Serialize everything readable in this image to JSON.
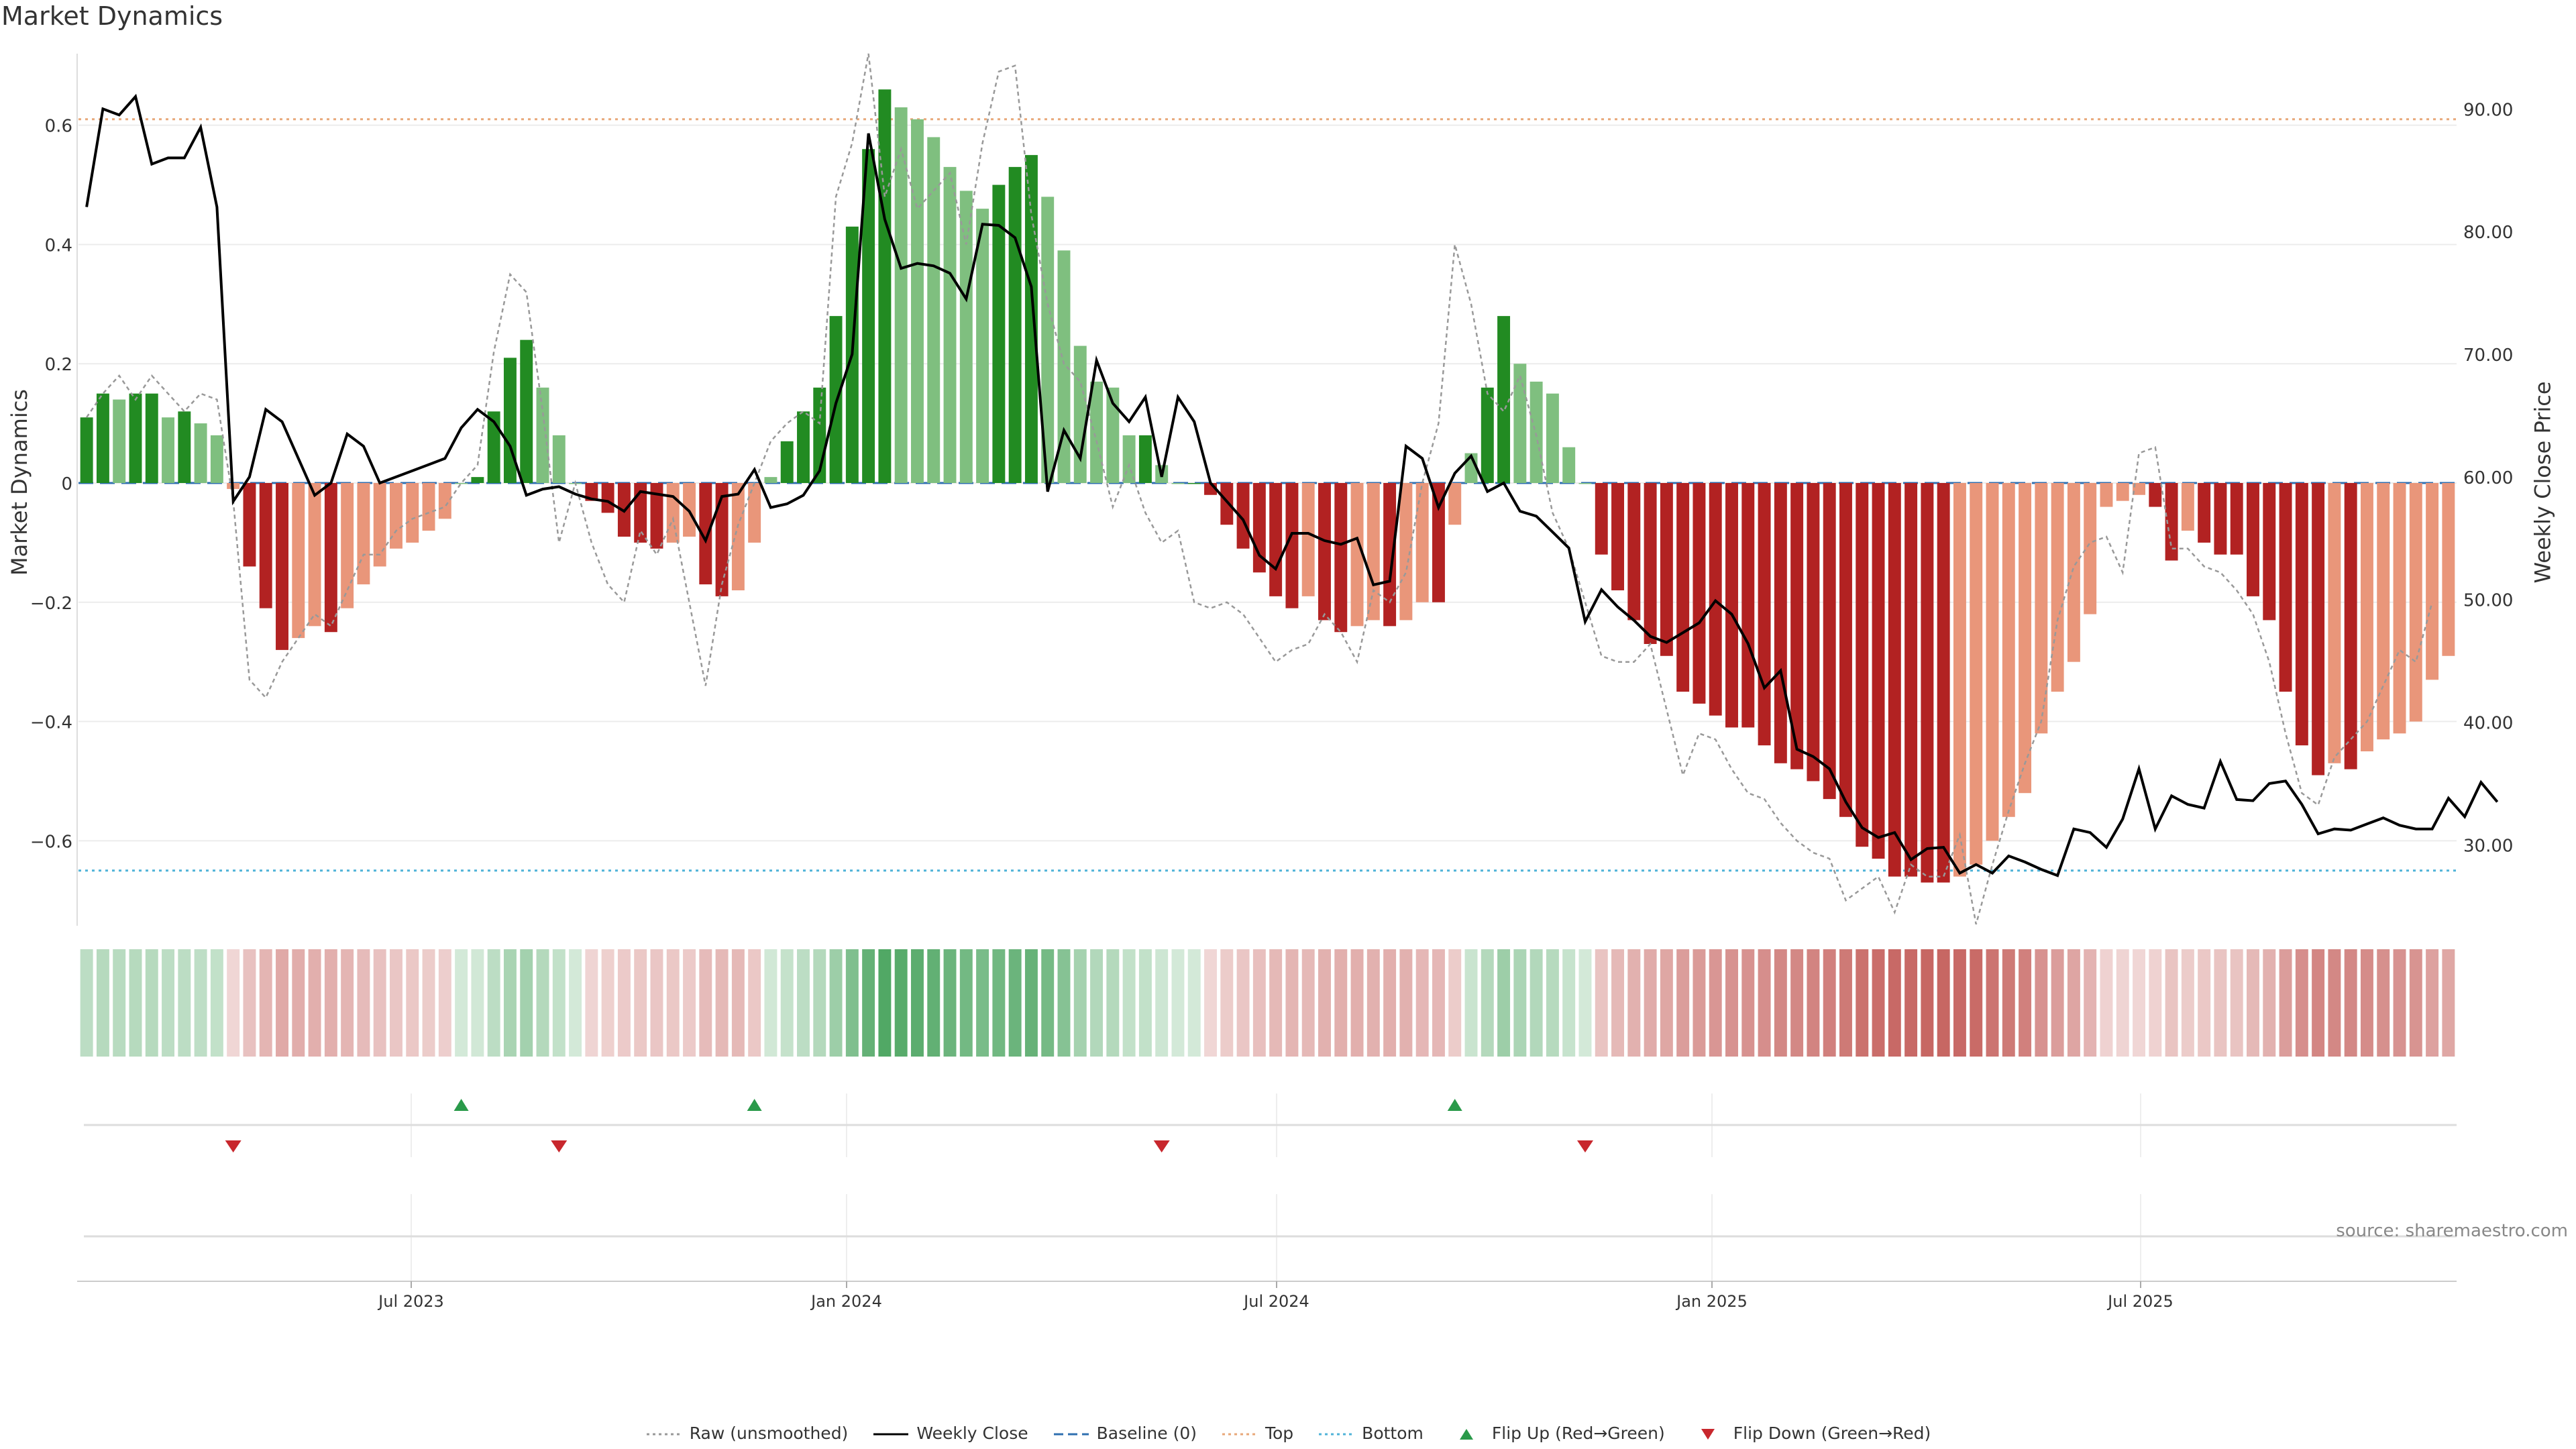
{
  "chart_data": {
    "type": "bar",
    "title": "Market Dynamics",
    "ylabel_left": "Market Dynamics",
    "ylabel_right": "Weekly Close Price",
    "source_note": "source: sharemaestro.com",
    "left_ylim": [
      -0.72,
      0.72
    ],
    "left_ticks": [
      "0.6",
      "0.4",
      "0.2",
      "0",
      "−0.2",
      "−0.4",
      "−0.6"
    ],
    "right_ylim": [
      24.5,
      94.5
    ],
    "right_ticks": [
      "90.00",
      "80.00",
      "70.00",
      "60.00",
      "50.00",
      "40.00",
      "30.00"
    ],
    "x_ticks": [
      "Jul 2023",
      "Jan 2024",
      "Jul 2024",
      "Jan 2025",
      "Jul 2025"
    ],
    "reference_lines": {
      "top": 0.61,
      "bottom": -0.65,
      "baseline": 0
    },
    "series": [
      {
        "name": "Market Dynamics",
        "type": "bar",
        "values": [
          0.11,
          0.15,
          0.14,
          0.15,
          0.15,
          0.11,
          0.12,
          0.1,
          0.08,
          -0.01,
          -0.14,
          -0.21,
          -0.28,
          -0.26,
          -0.24,
          -0.25,
          -0.21,
          -0.17,
          -0.14,
          -0.11,
          -0.1,
          -0.08,
          -0.06,
          0.0,
          0.01,
          0.12,
          0.21,
          0.24,
          0.16,
          0.08,
          0.0,
          -0.03,
          -0.05,
          -0.09,
          -0.1,
          -0.11,
          -0.1,
          -0.09,
          -0.17,
          -0.19,
          -0.18,
          -0.1,
          0.01,
          0.07,
          0.12,
          0.16,
          0.28,
          0.43,
          0.56,
          0.66,
          0.63,
          0.61,
          0.58,
          0.53,
          0.49,
          0.46,
          0.5,
          0.53,
          0.55,
          0.48,
          0.39,
          0.23,
          0.17,
          0.16,
          0.08,
          0.08,
          0.03,
          0.0,
          0.0,
          -0.02,
          -0.07,
          -0.11,
          -0.15,
          -0.19,
          -0.21,
          -0.19,
          -0.23,
          -0.25,
          -0.24,
          -0.23,
          -0.24,
          -0.23,
          -0.2,
          -0.2,
          -0.07,
          0.05,
          0.16,
          0.28,
          0.2,
          0.17,
          0.15,
          0.06,
          0.0,
          -0.12,
          -0.18,
          -0.23,
          -0.27,
          -0.29,
          -0.35,
          -0.37,
          -0.39,
          -0.41,
          -0.41,
          -0.44,
          -0.47,
          -0.48,
          -0.5,
          -0.53,
          -0.56,
          -0.61,
          -0.63,
          -0.66,
          -0.66,
          -0.67,
          -0.67,
          -0.66,
          -0.64,
          -0.6,
          -0.56,
          -0.52,
          -0.42,
          -0.35,
          -0.3,
          -0.22,
          -0.04,
          -0.03,
          -0.02,
          -0.04,
          -0.13,
          -0.08,
          -0.1,
          -0.12,
          -0.12,
          -0.19,
          -0.23,
          -0.35,
          -0.44,
          -0.49,
          -0.47,
          -0.48,
          -0.45,
          -0.43,
          -0.42,
          -0.4,
          -0.33,
          -0.29
        ]
      },
      {
        "name": "Raw (unsmoothed)",
        "type": "line",
        "values": [
          0.11,
          0.15,
          0.18,
          0.14,
          0.18,
          0.15,
          0.12,
          0.15,
          0.14,
          -0.03,
          -0.33,
          -0.36,
          -0.3,
          -0.26,
          -0.22,
          -0.24,
          -0.18,
          -0.12,
          -0.12,
          -0.08,
          -0.06,
          -0.05,
          -0.04,
          0.0,
          0.03,
          0.22,
          0.35,
          0.32,
          0.12,
          -0.1,
          0.0,
          -0.1,
          -0.17,
          -0.2,
          -0.08,
          -0.12,
          -0.06,
          -0.2,
          -0.34,
          -0.17,
          -0.07,
          0.0,
          0.07,
          0.1,
          0.12,
          0.1,
          0.48,
          0.57,
          0.72,
          0.48,
          0.56,
          0.46,
          0.49,
          0.52,
          0.4,
          0.57,
          0.69,
          0.7,
          0.45,
          0.3,
          0.2,
          0.17,
          0.07,
          -0.04,
          0.03,
          -0.05,
          -0.1,
          -0.08,
          -0.2,
          -0.21,
          -0.2,
          -0.22,
          -0.26,
          -0.3,
          -0.28,
          -0.27,
          -0.22,
          -0.25,
          -0.3,
          -0.18,
          -0.2,
          -0.15,
          0.0,
          0.1,
          0.4,
          0.3,
          0.15,
          0.12,
          0.18,
          0.08,
          -0.05,
          -0.11,
          -0.2,
          -0.29,
          -0.3,
          -0.3,
          -0.27,
          -0.38,
          -0.49,
          -0.42,
          -0.43,
          -0.48,
          -0.52,
          -0.53,
          -0.57,
          -0.6,
          -0.62,
          -0.63,
          -0.7,
          -0.68,
          -0.66,
          -0.72,
          -0.64,
          -0.66,
          -0.66,
          -0.59,
          -0.74,
          -0.64,
          -0.55,
          -0.47,
          -0.4,
          -0.23,
          -0.14,
          -0.1,
          -0.09,
          -0.15,
          0.05,
          0.06,
          -0.11,
          -0.11,
          -0.14,
          -0.15,
          -0.18,
          -0.22,
          -0.3,
          -0.42,
          -0.52,
          -0.54,
          -0.46,
          -0.43,
          -0.4,
          -0.34,
          -0.28,
          -0.3,
          -0.2
        ]
      },
      {
        "name": "Weekly Close",
        "type": "line",
        "axis": "right",
        "values": [
          82,
          90,
          89.5,
          91,
          85.5,
          86,
          86,
          88.5,
          82,
          58,
          60,
          65.5,
          64.5,
          61.5,
          58.5,
          59.5,
          63.5,
          62.5,
          59.5,
          60,
          60.5,
          61,
          61.5,
          64,
          65.5,
          64.5,
          62.5,
          58.5,
          59,
          59.2,
          58.6,
          58.2,
          58,
          57.2,
          58.8,
          58.6,
          58.4,
          57.2,
          54.8,
          58.4,
          58.6,
          60.6,
          57.5,
          57.8,
          58.5,
          60.5,
          66,
          70,
          88,
          81,
          77,
          77.4,
          77.2,
          76.6,
          74.5,
          80.6,
          80.5,
          79.5,
          75.5,
          58.8,
          63.8,
          61.5,
          69.5,
          66,
          64.5,
          66.5,
          60,
          66.5,
          64.5,
          59.5,
          58,
          56.5,
          53.6,
          52.5,
          55.4,
          55.4,
          54.8,
          54.5,
          55,
          51.2,
          51.5,
          62.5,
          61.5,
          57.5,
          60.3,
          61.7,
          58.8,
          59.5,
          57.2,
          56.8,
          55.5,
          54.2,
          48.2,
          50.8,
          49.4,
          48.3,
          47,
          46.5,
          47.3,
          48.1,
          49.9,
          48.8,
          46.4,
          42.8,
          44.2,
          37.8,
          37.2,
          36.2,
          33.5,
          31.4,
          30.6,
          31,
          28.8,
          29.7,
          29.8,
          27.7,
          28.4,
          27.7,
          29.1,
          28.6,
          28,
          27.5,
          31.3,
          31,
          29.8,
          32.1,
          36.2,
          31.3,
          34,
          33.3,
          33,
          36.8,
          33.7,
          33.6,
          35,
          35.2,
          33.3,
          30.9,
          31.3,
          31.2,
          31.7,
          32.2,
          31.6,
          31.3,
          31.3,
          33.8,
          32.3,
          35.1,
          33.5
        ]
      }
    ],
    "signals": {
      "flip_up": [
        23,
        41,
        84
      ],
      "flip_down": [
        9,
        29,
        66,
        92
      ]
    },
    "legend": [
      {
        "label": "Raw (unsmoothed)",
        "color": "#999999",
        "style": "dotted"
      },
      {
        "label": "Weekly Close",
        "color": "#000000",
        "style": "solid"
      },
      {
        "label": "Baseline (0)",
        "color": "#2f6fb0",
        "style": "dashed"
      },
      {
        "label": "Top",
        "color": "#e8a87a",
        "style": "dotted"
      },
      {
        "label": "Bottom",
        "color": "#4fb3d8",
        "style": "dotted"
      },
      {
        "label": "Flip Up (Red→Green)",
        "color": "#2a9a4a",
        "style": "triangle-up"
      },
      {
        "label": "Flip Down (Green→Red)",
        "color": "#c8272d",
        "style": "triangle-down"
      }
    ],
    "colors": {
      "strong_green": "#228b22",
      "light_green": "#7fbf7f",
      "strong_red": "#b22222",
      "light_red": "#e9967a"
    },
    "grid": true,
    "legend_position": "bottom"
  }
}
